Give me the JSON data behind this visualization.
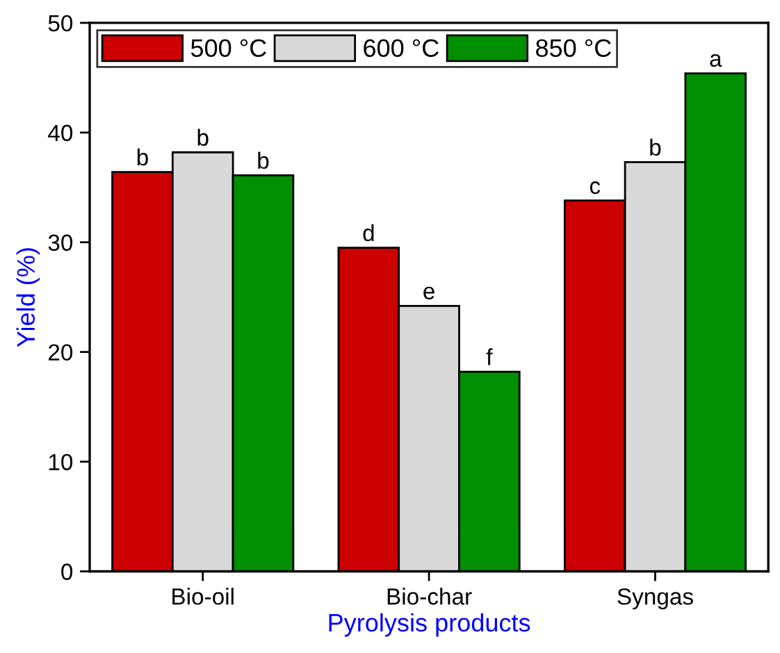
{
  "chart_data": {
    "type": "bar",
    "xlabel": "Pyrolysis products",
    "ylabel": "Yield (%)",
    "categories": [
      "Bio-oil",
      "Bio-char",
      "Syngas"
    ],
    "series": [
      {
        "name": "500 °C",
        "color": "#cc0000",
        "values": [
          36.4,
          29.5,
          33.8
        ]
      },
      {
        "name": "600 °C",
        "color": "#d9d9d9",
        "values": [
          38.2,
          24.2,
          37.3
        ]
      },
      {
        "name": "850 °C",
        "color": "#008f00",
        "values": [
          36.1,
          18.2,
          45.4
        ]
      }
    ],
    "ylim": [
      0,
      50
    ],
    "yticks": [
      0,
      10,
      20,
      30,
      40,
      50
    ],
    "grid": false,
    "legend": "top left",
    "annotations": [
      "b",
      "b",
      "b",
      "d",
      "e",
      "f",
      "c",
      "b",
      "a"
    ]
  }
}
